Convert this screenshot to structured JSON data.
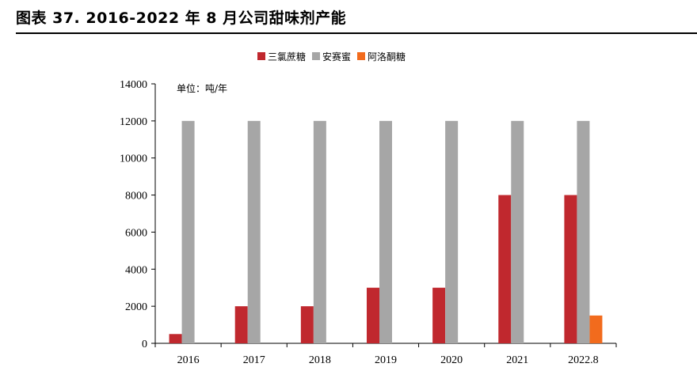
{
  "figure": {
    "title": "图表 37. 2016-2022 年 8 月公司甜味剂产能"
  },
  "chart_data": {
    "type": "bar",
    "title": "",
    "unit_note": "单位：吨/年",
    "categories": [
      "2016",
      "2017",
      "2018",
      "2019",
      "2020",
      "2021",
      "2022.8"
    ],
    "series": [
      {
        "name": "三氯蔗糖",
        "color": "#C0282E",
        "values": [
          500,
          2000,
          2000,
          3000,
          3000,
          8000,
          8000
        ]
      },
      {
        "name": "安赛蜜",
        "color": "#A6A6A6",
        "values": [
          12000,
          12000,
          12000,
          12000,
          12000,
          12000,
          12000
        ]
      },
      {
        "name": "阿洛酮糖",
        "color": "#F26B1D",
        "values": [
          0,
          0,
          0,
          0,
          0,
          0,
          1500
        ]
      }
    ],
    "ylim": [
      0,
      14000
    ],
    "yticks": [
      0,
      2000,
      4000,
      6000,
      8000,
      10000,
      12000,
      14000
    ],
    "legend_position": "top",
    "grid": false
  }
}
